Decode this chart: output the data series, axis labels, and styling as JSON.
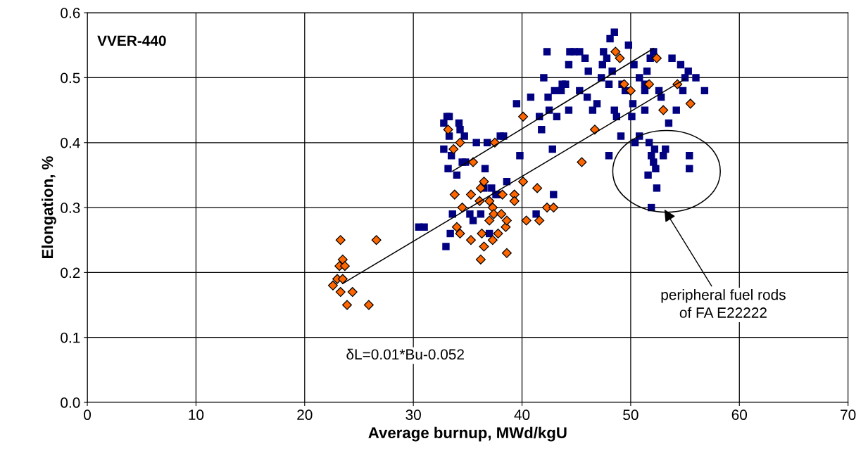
{
  "chart_data": {
    "type": "scatter",
    "xlabel": "Average burnup, MWd/kgU",
    "ylabel": "Elongation, %",
    "xlim": [
      0,
      70
    ],
    "xticks": [
      0,
      10,
      20,
      30,
      40,
      50,
      60,
      70
    ],
    "ylim": [
      0,
      0.6
    ],
    "yticks": [
      {
        "value": 0,
        "label": "0.0"
      },
      {
        "value": 0.1,
        "label": "0.1"
      },
      {
        "value": 0.2,
        "label": "0.2"
      },
      {
        "value": 0.3,
        "label": "0.3"
      },
      {
        "value": 0.4,
        "label": "0.4"
      },
      {
        "value": 0.5,
        "label": "0.5"
      },
      {
        "value": 0.6,
        "label": "0.6"
      }
    ],
    "grid": true,
    "annotations": [
      "VVER-440",
      "δL=0.01*Bu-0.052",
      "peripheral fuel rods\nof FA E22222"
    ],
    "series": [
      {
        "marker": "square",
        "color": "#000080",
        "x": [
          30.5,
          31.0,
          32.8,
          32.8,
          33.0,
          33.2,
          33.3,
          33.3,
          33.5,
          33.4,
          33.6,
          34.0,
          34.2,
          34.3,
          34.5,
          34.7,
          34.8,
          35.2,
          35.5,
          35.8,
          36.2,
          36.6,
          36.8,
          37.2,
          37.0,
          37.6,
          37.8,
          38.3,
          38.6,
          39.5,
          39.8,
          40.8,
          41.3,
          41.6,
          41.8,
          42.0,
          42.3,
          42.4,
          42.5,
          42.8,
          42.9,
          43.0,
          43.2,
          43.6,
          43.7,
          44.0,
          44.3,
          44.3,
          44.4,
          44.8,
          45.3,
          45.3,
          45.8,
          46.0,
          46.1,
          46.5,
          46.9,
          47.3,
          47.4,
          47.5,
          47.8,
          48.0,
          48.1,
          48.3,
          48.5,
          48.5,
          48.7,
          48.0,
          49.1,
          49.2,
          49.8,
          50.2,
          50.3,
          50.4,
          50.8,
          50.8,
          51.3,
          51.3,
          51.5,
          51.6,
          51.7,
          51.9,
          51.9,
          52.1,
          52.3,
          52.4,
          52.2,
          52.6,
          52.8,
          53.2,
          53.0,
          51.8,
          52.1,
          51.3,
          53.5,
          54.2,
          53.8,
          54.6,
          55.0,
          55.3,
          55.4,
          55.4,
          56.0,
          56.8,
          54.8,
          49.5,
          50.1,
          38.0,
          36.5,
          33.1
        ],
        "values": [
          0.27,
          0.27,
          0.39,
          0.43,
          0.24,
          0.36,
          0.44,
          0.41,
          0.38,
          0.26,
          0.29,
          0.35,
          0.43,
          0.42,
          0.37,
          0.41,
          0.37,
          0.29,
          0.28,
          0.4,
          0.29,
          0.36,
          0.4,
          0.33,
          0.26,
          0.32,
          0.32,
          0.41,
          0.34,
          0.46,
          0.38,
          0.47,
          0.29,
          0.44,
          0.42,
          0.5,
          0.54,
          0.47,
          0.45,
          0.39,
          0.32,
          0.48,
          0.44,
          0.48,
          0.49,
          0.49,
          0.45,
          0.52,
          0.54,
          0.54,
          0.54,
          0.48,
          0.53,
          0.47,
          0.51,
          0.45,
          0.46,
          0.5,
          0.52,
          0.54,
          0.53,
          0.49,
          0.56,
          0.51,
          0.57,
          0.45,
          0.44,
          0.38,
          0.41,
          0.49,
          0.55,
          0.46,
          0.52,
          0.4,
          0.5,
          0.41,
          0.49,
          0.45,
          0.51,
          0.35,
          0.4,
          0.3,
          0.38,
          0.37,
          0.36,
          0.33,
          0.39,
          0.48,
          0.47,
          0.39,
          0.38,
          0.53,
          0.54,
          0.48,
          0.43,
          0.45,
          0.53,
          0.52,
          0.5,
          0.51,
          0.38,
          0.36,
          0.5,
          0.48,
          0.48,
          0.48,
          0.44,
          0.41,
          0.33,
          0.44
        ]
      },
      {
        "marker": "diamond",
        "color": "#ff6600",
        "x": [
          22.6,
          23.0,
          23.3,
          23.3,
          23.2,
          23.5,
          23.7,
          23.5,
          23.9,
          24.4,
          25.9,
          26.6,
          33.2,
          33.7,
          34.3,
          33.8,
          34.5,
          34.3,
          34.0,
          35.3,
          35.5,
          35.3,
          36.1,
          36.2,
          36.5,
          36.3,
          36.2,
          36.5,
          37.0,
          37.0,
          37.3,
          37.4,
          37.3,
          37.5,
          37.8,
          38.1,
          38.2,
          38.5,
          38.6,
          38.6,
          39.3,
          39.3,
          40.1,
          40.1,
          40.4,
          41.4,
          41.6,
          42.3,
          42.9,
          45.5,
          46.7,
          48.6,
          49.0,
          49.4,
          50.0,
          51.7,
          52.4,
          53.0,
          54.3,
          55.5
        ],
        "values": [
          0.18,
          0.19,
          0.25,
          0.17,
          0.21,
          0.22,
          0.21,
          0.19,
          0.15,
          0.17,
          0.15,
          0.25,
          0.42,
          0.39,
          0.4,
          0.32,
          0.3,
          0.26,
          0.27,
          0.32,
          0.37,
          0.25,
          0.31,
          0.33,
          0.34,
          0.26,
          0.22,
          0.24,
          0.31,
          0.28,
          0.3,
          0.29,
          0.25,
          0.4,
          0.26,
          0.29,
          0.32,
          0.27,
          0.28,
          0.23,
          0.32,
          0.31,
          0.44,
          0.34,
          0.28,
          0.33,
          0.28,
          0.3,
          0.3,
          0.37,
          0.42,
          0.54,
          0.53,
          0.49,
          0.48,
          0.49,
          0.53,
          0.45,
          0.49,
          0.46
        ]
      },
      {
        "type": "line",
        "marker": "none",
        "color": "#000000",
        "x": [
          33.6,
          52.1
        ],
        "values": [
          0.356,
          0.545
        ]
      },
      {
        "type": "line",
        "marker": "none",
        "color": "#000000",
        "x": [
          23.5,
          55.0
        ],
        "values": [
          0.183,
          0.498
        ]
      }
    ]
  }
}
